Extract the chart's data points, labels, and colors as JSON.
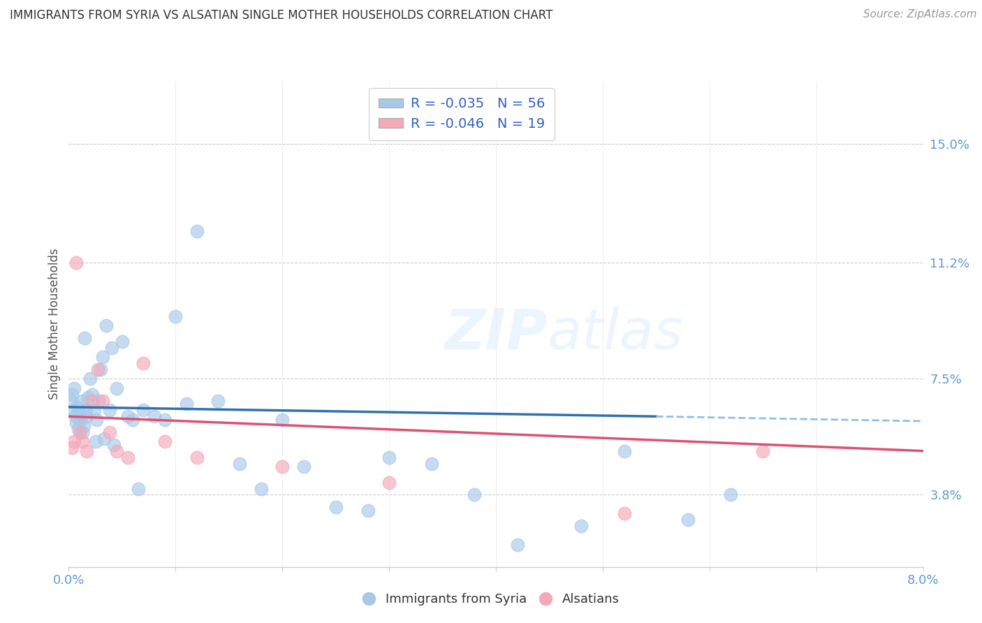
{
  "title": "IMMIGRANTS FROM SYRIA VS ALSATIAN SINGLE MOTHER HOUSEHOLDS CORRELATION CHART",
  "source": "Source: ZipAtlas.com",
  "ylabel": "Single Mother Households",
  "ytick_labels": [
    "15.0%",
    "11.2%",
    "7.5%",
    "3.8%"
  ],
  "ytick_values": [
    15.0,
    11.2,
    7.5,
    3.8
  ],
  "xlim": [
    0.0,
    8.0
  ],
  "ylim": [
    1.5,
    17.0
  ],
  "legend_r1": "R = -0.035",
  "legend_n1": "N = 56",
  "legend_r2": "R = -0.046",
  "legend_n2": "N = 19",
  "blue_color": "#a8c8e8",
  "pink_color": "#f4a8b8",
  "trend_blue_solid": "#3070b0",
  "trend_blue_dash": "#90c0e0",
  "trend_pink": "#e05070",
  "watermark_color": "#ddeeff",
  "blue_points_x": [
    0.02,
    0.03,
    0.04,
    0.05,
    0.06,
    0.07,
    0.08,
    0.09,
    0.1,
    0.11,
    0.12,
    0.13,
    0.14,
    0.15,
    0.16,
    0.17,
    0.18,
    0.2,
    0.22,
    0.24,
    0.26,
    0.28,
    0.3,
    0.32,
    0.35,
    0.38,
    0.4,
    0.45,
    0.5,
    0.55,
    0.6,
    0.7,
    0.8,
    0.9,
    1.0,
    1.1,
    1.2,
    1.4,
    1.6,
    1.8,
    2.0,
    2.2,
    2.5,
    2.8,
    3.0,
    3.4,
    3.8,
    4.2,
    4.8,
    5.2,
    5.8,
    6.2,
    0.25,
    0.33,
    0.42,
    0.65
  ],
  "blue_points_y": [
    6.8,
    7.0,
    6.5,
    7.2,
    6.3,
    6.1,
    6.6,
    5.9,
    6.4,
    6.2,
    6.8,
    5.8,
    6.0,
    8.8,
    6.5,
    6.3,
    6.9,
    7.5,
    7.0,
    6.5,
    6.2,
    6.8,
    7.8,
    8.2,
    9.2,
    6.5,
    8.5,
    7.2,
    8.7,
    6.3,
    6.2,
    6.5,
    6.3,
    6.2,
    9.5,
    6.7,
    12.2,
    6.8,
    4.8,
    4.0,
    6.2,
    4.7,
    3.4,
    3.3,
    5.0,
    4.8,
    3.8,
    2.2,
    2.8,
    5.2,
    3.0,
    3.8,
    5.5,
    5.6,
    5.4,
    4.0
  ],
  "pink_points_x": [
    0.03,
    0.05,
    0.07,
    0.1,
    0.13,
    0.17,
    0.22,
    0.27,
    0.32,
    0.38,
    0.45,
    0.55,
    0.7,
    0.9,
    1.2,
    2.0,
    3.0,
    5.2,
    6.5
  ],
  "pink_points_y": [
    5.3,
    5.5,
    11.2,
    5.8,
    5.5,
    5.2,
    6.8,
    7.8,
    6.8,
    5.8,
    5.2,
    5.0,
    8.0,
    5.5,
    5.0,
    4.7,
    4.2,
    3.2,
    5.2
  ],
  "trend_blue_x0": 0.0,
  "trend_blue_y0": 6.6,
  "trend_blue_x1": 5.5,
  "trend_blue_y1": 6.3,
  "trend_blue_dash_x0": 5.5,
  "trend_blue_dash_y0": 6.3,
  "trend_blue_dash_x1": 8.0,
  "trend_blue_dash_y1": 6.15,
  "trend_pink_x0": 0.0,
  "trend_pink_y0": 6.3,
  "trend_pink_x1": 8.0,
  "trend_pink_y1": 5.2
}
